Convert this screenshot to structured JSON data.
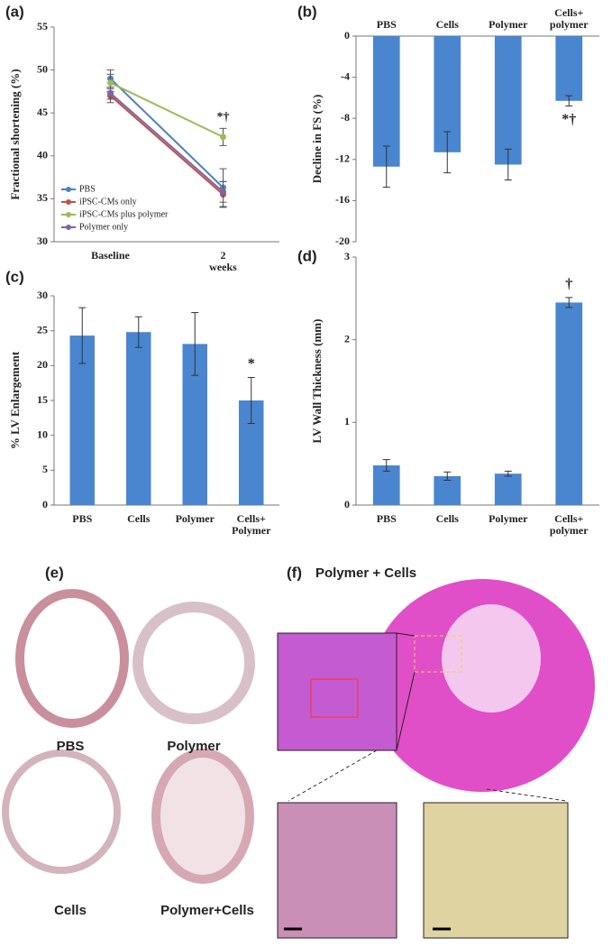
{
  "chart_data": [
    {
      "type": "line",
      "title": "(a)",
      "ylabel": "Fractional shortening (%)",
      "categories": [
        "Baseline",
        "2 weeks"
      ],
      "ylim": [
        30,
        55
      ],
      "yticks": [
        30,
        35,
        40,
        45,
        50,
        55
      ],
      "series": [
        {
          "name": "PBS",
          "color": "#4f81bd",
          "values": [
            49,
            36.3
          ],
          "errors": [
            1,
            2.2
          ]
        },
        {
          "name": "iPSC-CMs only",
          "color": "#c0504d",
          "values": [
            47,
            35.5
          ],
          "errors": [
            0.8,
            1.5
          ]
        },
        {
          "name": "iPSC-CMs plus polymer",
          "color": "#9bbb59",
          "values": [
            48.5,
            42.2
          ],
          "errors": [
            1,
            1
          ]
        },
        {
          "name": "Polymer only",
          "color": "#8064a2",
          "values": [
            47.3,
            35.8
          ],
          "errors": [
            0.7,
            1.2
          ]
        }
      ],
      "annotations": [
        "*†"
      ],
      "legend": "lower-left"
    },
    {
      "type": "bar",
      "title": "(b)",
      "ylabel": "Decline in FS (%)",
      "xaxis": "top",
      "categories": [
        "PBS",
        "Cells",
        "Polymer",
        "Cells+ polymer"
      ],
      "ylim": [
        -20,
        0
      ],
      "yticks": [
        0,
        -4,
        -8,
        -12,
        -16,
        -20
      ],
      "color": "#4a86d0",
      "values": [
        -12.7,
        -11.3,
        -12.5,
        -6.3
      ],
      "errors": [
        2,
        2,
        1.5,
        0.5
      ],
      "annotations": [
        "*†"
      ]
    },
    {
      "type": "bar",
      "title": "(c)",
      "ylabel": "% LV Enlargement",
      "categories": [
        "PBS",
        "Cells",
        "Polymer",
        "Cells+ Polymer"
      ],
      "ylim": [
        0,
        30
      ],
      "yticks": [
        0,
        5,
        10,
        15,
        20,
        25,
        30
      ],
      "color": "#4a86d0",
      "values": [
        24.3,
        24.8,
        23.1,
        15
      ],
      "errors": [
        4,
        2.2,
        4.5,
        3.3
      ],
      "annotations": [
        "*"
      ]
    },
    {
      "type": "bar",
      "title": "(d)",
      "ylabel": "LV Wall Thickness (mm)",
      "categories": [
        "PBS",
        "Cells",
        "Polymer",
        "Cells+ polymer"
      ],
      "ylim": [
        0,
        3
      ],
      "yticks": [
        0,
        1,
        2,
        3
      ],
      "color": "#4a86d0",
      "values": [
        0.48,
        0.35,
        0.38,
        2.45
      ],
      "errors": [
        0.07,
        0.05,
        0.03,
        0.06
      ],
      "annotations": [
        "†"
      ]
    }
  ],
  "histology": {
    "e_label": "(e)",
    "e_captions": [
      "PBS",
      "Polymer",
      "Cells",
      "Polymer+Cells"
    ],
    "f_label": "(f)",
    "f_title": "Polymer + Cells"
  }
}
